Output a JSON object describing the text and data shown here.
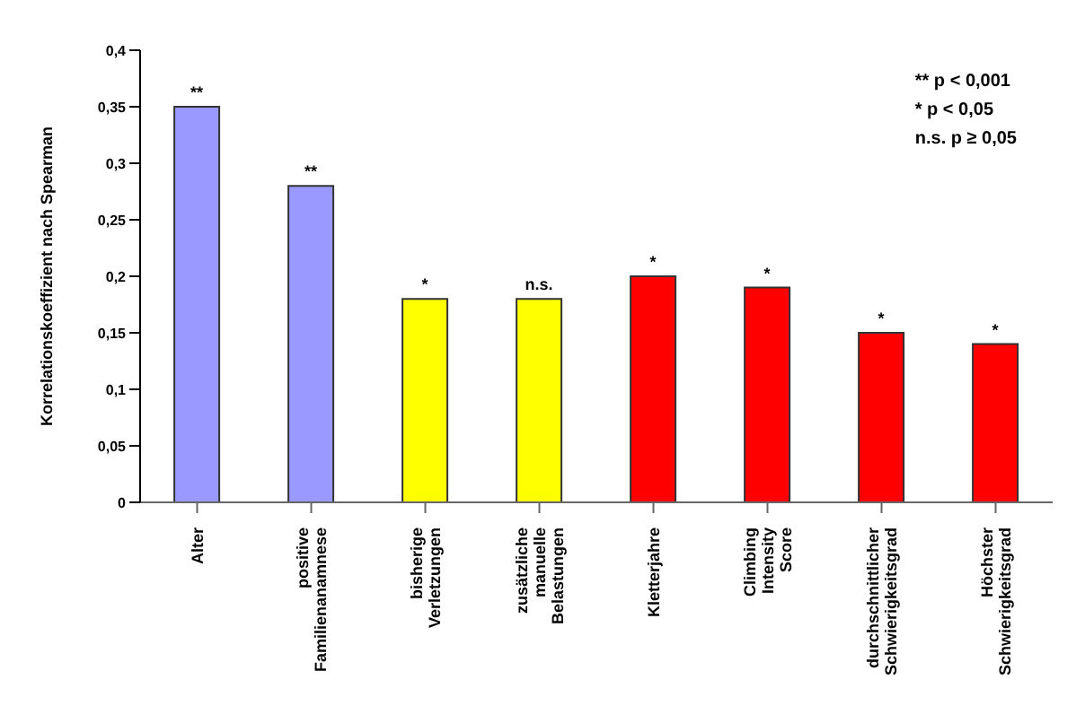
{
  "chart_data": {
    "type": "bar",
    "ylabel": "Korrelationskoeffizient nach Spearman",
    "categories": [
      "Alter",
      "positive Familienanamnese",
      "bisherige Verletzungen",
      "zusätzliche manuelle Belastungen",
      "Kletterjahre",
      "Climbing Intensity Score",
      "durchschnittlicher Schwierigkeitsgrad",
      "Höchster Schwierigkeitsgrad"
    ],
    "values": [
      0.35,
      0.28,
      0.18,
      0.18,
      0.2,
      0.19,
      0.15,
      0.14
    ],
    "colors": [
      "#9999ff",
      "#9999ff",
      "#ffff00",
      "#ffff00",
      "#ff0000",
      "#ff0000",
      "#ff0000",
      "#ff0000"
    ],
    "value_labels": [
      "**",
      "**",
      "*",
      "n.s.",
      "*",
      "*",
      "*",
      "*"
    ],
    "ylim": [
      0,
      0.4
    ],
    "yticks": [
      {
        "value": 0,
        "label": "0"
      },
      {
        "value": 0.05,
        "label": "0,05"
      },
      {
        "value": 0.1,
        "label": "0,1"
      },
      {
        "value": 0.15,
        "label": "0,15"
      },
      {
        "value": 0.2,
        "label": "0,2"
      },
      {
        "value": 0.25,
        "label": "0,25"
      },
      {
        "value": 0.3,
        "label": "0,3"
      },
      {
        "value": 0.35,
        "label": "0,35"
      },
      {
        "value": 0.4,
        "label": "0,4"
      }
    ],
    "annotations": [
      "** p < 0,001",
      "* p < 0,05",
      "n.s. p ≥ 0,05"
    ],
    "grid": false,
    "legend": false
  }
}
